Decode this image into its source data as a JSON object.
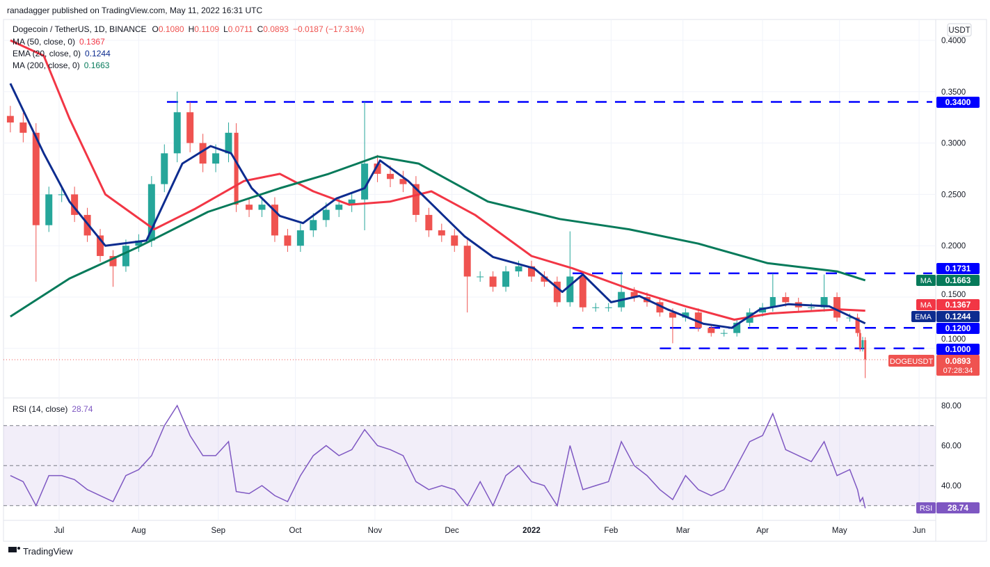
{
  "header": {
    "published": "ranadagger published on TradingView.com, May 11, 2022 16:31 UTC"
  },
  "legend": {
    "symbol": "Dogecoin / TetherUS, 1D, BINANCE",
    "o_label": "O",
    "o": "0.1080",
    "h_label": "H",
    "h": "0.1109",
    "l_label": "L",
    "l": "0.0711",
    "c_label": "C",
    "c": "0.0893",
    "change": "−0.0187 (−17.31%)",
    "ma50": "MA (50, close, 0)",
    "ma50_val": "0.1367",
    "ema20": "EMA (20, close, 0)",
    "ema20_val": "0.1244",
    "ma200": "MA (200, close, 0)",
    "ma200_val": "0.1663",
    "rsi": "RSI (14, close)",
    "rsi_val": "28.74"
  },
  "colors": {
    "up": "#26a69a",
    "down": "#ef5350",
    "ma50": "#f23645",
    "ema20": "#0d2c8f",
    "ma200": "#067a5a",
    "level": "#0000ff",
    "rsi": "#7e57c2"
  },
  "price_axis": {
    "currency": "USDT",
    "ticks": [
      "0.4000",
      "0.3500",
      "0.3000",
      "0.2500",
      "0.2000",
      "0.1500",
      "0.1000"
    ]
  },
  "badges": {
    "l1731": "0.1731",
    "ma200_tag": "MA",
    "ma200": "0.1663",
    "ma50_tag": "MA",
    "ma50": "0.1367",
    "ema_tag": "EMA",
    "ema": "0.1244",
    "l1200": "0.1200",
    "l1000": "0.1000",
    "l3400": "0.3400",
    "symbol_tag": "DOGEUSDT",
    "last": "0.0893",
    "countdown": "07:28:34",
    "rsi_tag": "RSI",
    "rsi": "28.74"
  },
  "rsi_axis": {
    "ticks": [
      "80.00",
      "60.00",
      "40.00"
    ]
  },
  "time_axis": [
    {
      "label": "Jul",
      "date": "2021-07-01"
    },
    {
      "label": "Aug",
      "date": "2021-08-01"
    },
    {
      "label": "Sep",
      "date": "2021-09-01"
    },
    {
      "label": "Oct",
      "date": "2021-10-01"
    },
    {
      "label": "Nov",
      "date": "2021-11-01"
    },
    {
      "label": "Dec",
      "date": "2021-12-01"
    },
    {
      "label": "2022",
      "date": "2022-01-01"
    },
    {
      "label": "Feb",
      "date": "2022-02-01"
    },
    {
      "label": "Mar",
      "date": "2022-03-01"
    },
    {
      "label": "Apr",
      "date": "2022-04-01"
    },
    {
      "label": "May",
      "date": "2022-05-01"
    },
    {
      "label": "Jun",
      "date": "2022-06-01"
    }
  ],
  "footer": {
    "brand": "TradingView"
  },
  "chart_data": {
    "type": "candlestick",
    "title": "Dogecoin / TetherUS, 1D, BINANCE",
    "ylim": [
      0.06,
      0.42
    ],
    "dates": [
      "2021-06-12",
      "2021-06-17",
      "2021-06-22",
      "2021-06-27",
      "2021-07-02",
      "2021-07-07",
      "2021-07-12",
      "2021-07-17",
      "2021-07-22",
      "2021-07-27",
      "2021-08-01",
      "2021-08-06",
      "2021-08-11",
      "2021-08-16",
      "2021-08-21",
      "2021-08-26",
      "2021-08-31",
      "2021-09-05",
      "2021-09-08",
      "2021-09-13",
      "2021-09-18",
      "2021-09-23",
      "2021-09-28",
      "2021-10-03",
      "2021-10-08",
      "2021-10-13",
      "2021-10-18",
      "2021-10-23",
      "2021-10-28",
      "2021-11-02",
      "2021-11-07",
      "2021-11-12",
      "2021-11-17",
      "2021-11-22",
      "2021-11-27",
      "2021-12-02",
      "2021-12-07",
      "2021-12-12",
      "2021-12-17",
      "2021-12-22",
      "2021-12-27",
      "2022-01-01",
      "2022-01-06",
      "2022-01-11",
      "2022-01-16",
      "2022-01-21",
      "2022-01-26",
      "2022-01-31",
      "2022-02-05",
      "2022-02-10",
      "2022-02-15",
      "2022-02-20",
      "2022-02-25",
      "2022-03-02",
      "2022-03-07",
      "2022-03-12",
      "2022-03-17",
      "2022-03-22",
      "2022-03-27",
      "2022-04-01",
      "2022-04-05",
      "2022-04-10",
      "2022-04-15",
      "2022-04-20",
      "2022-04-25",
      "2022-04-30",
      "2022-05-05",
      "2022-05-08",
      "2022-05-09",
      "2022-05-10",
      "2022-05-11"
    ],
    "close": [
      0.32,
      0.31,
      0.22,
      0.25,
      0.25,
      0.23,
      0.21,
      0.19,
      0.18,
      0.2,
      0.205,
      0.26,
      0.29,
      0.33,
      0.3,
      0.28,
      0.29,
      0.31,
      0.24,
      0.235,
      0.24,
      0.21,
      0.2,
      0.215,
      0.225,
      0.235,
      0.24,
      0.245,
      0.28,
      0.27,
      0.265,
      0.26,
      0.23,
      0.215,
      0.21,
      0.2,
      0.17,
      0.17,
      0.16,
      0.175,
      0.18,
      0.17,
      0.165,
      0.145,
      0.17,
      0.14,
      0.14,
      0.14,
      0.155,
      0.15,
      0.145,
      0.135,
      0.13,
      0.135,
      0.12,
      0.115,
      0.115,
      0.125,
      0.135,
      0.14,
      0.15,
      0.145,
      0.14,
      0.14,
      0.15,
      0.13,
      0.13,
      0.115,
      0.1,
      0.108,
      0.0893
    ],
    "wick_extremes": [
      {
        "date": "2021-06-22",
        "low": 0.165
      },
      {
        "date": "2021-07-22",
        "low": 0.16
      },
      {
        "date": "2021-08-16",
        "high": 0.35
      },
      {
        "date": "2021-09-05",
        "high": 0.32
      },
      {
        "date": "2021-10-28",
        "high": 0.34,
        "low": 0.215
      },
      {
        "date": "2021-12-07",
        "low": 0.135
      },
      {
        "date": "2022-01-16",
        "high": 0.214
      },
      {
        "date": "2022-02-05",
        "high": 0.175
      },
      {
        "date": "2022-02-25",
        "low": 0.105
      },
      {
        "date": "2022-04-05",
        "high": 0.173
      },
      {
        "date": "2022-04-25",
        "high": 0.172
      },
      {
        "date": "2022-05-11",
        "high": 0.1109,
        "low": 0.0711
      }
    ],
    "series": [
      {
        "name": "MA 50",
        "key": "ma50",
        "points": [
          [
            "2021-06-12",
            0.4
          ],
          [
            "2021-06-25",
            0.385
          ],
          [
            "2021-07-05",
            0.324
          ],
          [
            "2021-07-19",
            0.25
          ],
          [
            "2021-08-07",
            0.216
          ],
          [
            "2021-08-23",
            0.236
          ],
          [
            "2021-09-11",
            0.263
          ],
          [
            "2021-09-25",
            0.27
          ],
          [
            "2021-10-08",
            0.253
          ],
          [
            "2021-10-22",
            0.24
          ],
          [
            "2021-11-07",
            0.243
          ],
          [
            "2021-11-23",
            0.253
          ],
          [
            "2021-12-10",
            0.23
          ],
          [
            "2022-01-01",
            0.19
          ],
          [
            "2022-01-17",
            0.178
          ],
          [
            "2022-02-08",
            0.158
          ],
          [
            "2022-03-02",
            0.141
          ],
          [
            "2022-03-21",
            0.128
          ],
          [
            "2022-04-04",
            0.134
          ],
          [
            "2022-05-01",
            0.138
          ],
          [
            "2022-05-11",
            0.1367
          ]
        ]
      },
      {
        "name": "EMA 20",
        "key": "ema20",
        "points": [
          [
            "2021-06-12",
            0.358
          ],
          [
            "2021-06-25",
            0.29
          ],
          [
            "2021-07-05",
            0.243
          ],
          [
            "2021-07-19",
            0.2
          ],
          [
            "2021-08-04",
            0.205
          ],
          [
            "2021-08-18",
            0.28
          ],
          [
            "2021-08-29",
            0.297
          ],
          [
            "2021-09-06",
            0.29
          ],
          [
            "2021-09-14",
            0.256
          ],
          [
            "2021-09-25",
            0.229
          ],
          [
            "2021-10-04",
            0.222
          ],
          [
            "2021-10-17",
            0.246
          ],
          [
            "2021-10-28",
            0.256
          ],
          [
            "2021-11-03",
            0.283
          ],
          [
            "2021-11-14",
            0.263
          ],
          [
            "2021-11-25",
            0.236
          ],
          [
            "2021-12-06",
            0.209
          ],
          [
            "2021-12-17",
            0.189
          ],
          [
            "2022-01-02",
            0.178
          ],
          [
            "2022-01-13",
            0.155
          ],
          [
            "2022-01-21",
            0.172
          ],
          [
            "2022-02-01",
            0.145
          ],
          [
            "2022-02-12",
            0.151
          ],
          [
            "2022-02-23",
            0.138
          ],
          [
            "2022-03-09",
            0.124
          ],
          [
            "2022-03-20",
            0.12
          ],
          [
            "2022-03-31",
            0.138
          ],
          [
            "2022-04-11",
            0.143
          ],
          [
            "2022-04-27",
            0.141
          ],
          [
            "2022-05-11",
            0.1244
          ]
        ]
      },
      {
        "name": "MA 200",
        "key": "ma200",
        "points": [
          [
            "2021-06-12",
            0.131
          ],
          [
            "2021-07-05",
            0.168
          ],
          [
            "2021-08-01",
            0.199
          ],
          [
            "2021-08-28",
            0.233
          ],
          [
            "2021-09-25",
            0.256
          ],
          [
            "2021-10-14",
            0.27
          ],
          [
            "2021-11-02",
            0.287
          ],
          [
            "2021-11-18",
            0.28
          ],
          [
            "2021-12-15",
            0.243
          ],
          [
            "2022-01-12",
            0.226
          ],
          [
            "2022-02-08",
            0.216
          ],
          [
            "2022-03-07",
            0.202
          ],
          [
            "2022-04-03",
            0.183
          ],
          [
            "2022-04-30",
            0.175
          ],
          [
            "2022-05-11",
            0.1663
          ]
        ]
      }
    ],
    "levels": [
      {
        "value": 0.34,
        "from": "2021-08-12",
        "label": "0.3400"
      },
      {
        "value": 0.1731,
        "from": "2022-01-17",
        "label": "0.1731"
      },
      {
        "value": 0.12,
        "from": "2022-01-17",
        "label": "0.1200"
      },
      {
        "value": 0.1,
        "from": "2022-02-20",
        "label": "0.1000"
      }
    ],
    "rsi": {
      "name": "RSI (14, close)",
      "ylim": [
        20,
        90
      ],
      "bands": [
        70,
        50,
        30
      ],
      "values": [
        45,
        42,
        30,
        45,
        45,
        43,
        38,
        35,
        32,
        45,
        48,
        55,
        70,
        80,
        65,
        55,
        55,
        62,
        37,
        36,
        40,
        35,
        32,
        45,
        55,
        60,
        55,
        58,
        68,
        60,
        58,
        55,
        42,
        38,
        40,
        38,
        30,
        42,
        30,
        45,
        50,
        42,
        40,
        30,
        60,
        38,
        40,
        42,
        62,
        50,
        45,
        38,
        33,
        45,
        38,
        35,
        38,
        50,
        62,
        65,
        76,
        58,
        55,
        52,
        62,
        45,
        48,
        38,
        32,
        34,
        28.74
      ]
    }
  }
}
